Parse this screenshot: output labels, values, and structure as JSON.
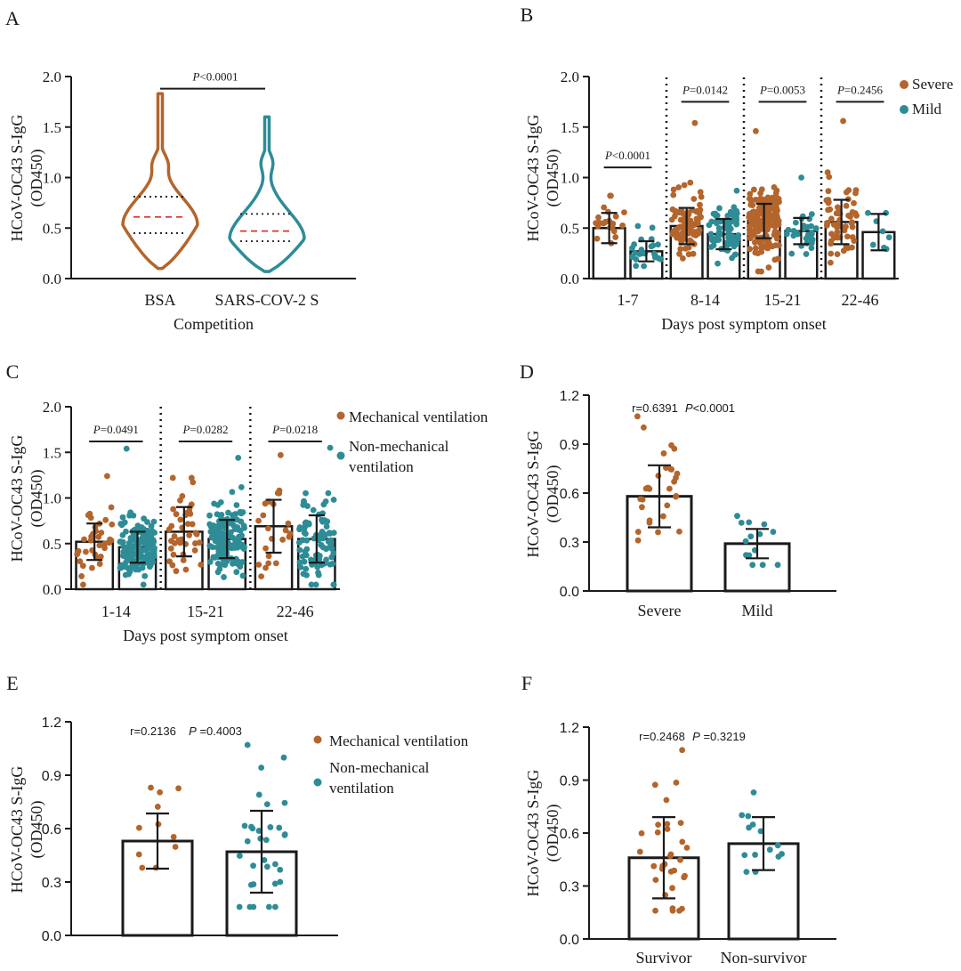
{
  "colors": {
    "severe": "#B3652C",
    "mild": "#2E8C96",
    "median": "#D9352A",
    "axis": "#1a1a1a"
  },
  "chart_data": [
    {
      "panel": "A",
      "type": "violin",
      "ylabel": [
        "HCoV-OC43 S-IgG",
        "(OD450)"
      ],
      "xlabel": "Competition",
      "categories": [
        "BSA",
        "SARS-COV-2 S"
      ],
      "ylim": [
        0,
        2.0
      ],
      "yticks": [
        "0.0",
        "0.5",
        "1.0",
        "1.5",
        "2.0"
      ],
      "violins": [
        {
          "name": "BSA",
          "color": "severe",
          "min": 0.1,
          "max": 1.83,
          "q1": 0.45,
          "median": 0.61,
          "q3": 0.81
        },
        {
          "name": "SARS-COV-2 S",
          "color": "mild",
          "min": 0.07,
          "max": 1.6,
          "q1": 0.37,
          "median": 0.47,
          "q3": 0.64
        }
      ],
      "significance": [
        {
          "from": 0,
          "to": 1,
          "y": 1.88,
          "label": "<0.0001"
        }
      ]
    },
    {
      "panel": "B",
      "type": "bar",
      "ylabel": [
        "HCoV-OC43 S-IgG",
        "(OD450)"
      ],
      "xlabel": "Days post symptom onset",
      "categories": [
        "1-7",
        "8-14",
        "15-21",
        "22-46"
      ],
      "ylim": [
        0,
        2.0
      ],
      "yticks": [
        "0.0",
        "0.5",
        "1.0",
        "1.5",
        "2.0"
      ],
      "legend": [
        "Severe",
        "Mild"
      ],
      "legend_placement": "top-right",
      "series": [
        {
          "name": "Severe",
          "color": "severe",
          "values": [
            0.5,
            0.52,
            0.57,
            0.56
          ],
          "sd": [
            0.15,
            0.18,
            0.17,
            0.22
          ],
          "n": [
            22,
            90,
            160,
            60
          ],
          "max": [
            0.82,
            1.54,
            1.46,
            1.56
          ]
        },
        {
          "name": "Mild",
          "color": "mild",
          "values": [
            0.27,
            0.44,
            0.47,
            0.46
          ],
          "sd": [
            0.1,
            0.15,
            0.13,
            0.18
          ],
          "n": [
            22,
            70,
            28,
            7
          ],
          "max": [
            0.52,
            0.87,
            1.0,
            0.65
          ]
        }
      ],
      "significance": [
        {
          "group": 0,
          "y": 1.1,
          "label": "<0.0001"
        },
        {
          "group": 1,
          "y": 1.75,
          "label": "=0.0142"
        },
        {
          "group": 2,
          "y": 1.75,
          "label": "=0.0053"
        },
        {
          "group": 3,
          "y": 1.75,
          "label": "=0.2456"
        }
      ]
    },
    {
      "panel": "C",
      "type": "bar",
      "ylabel": [
        "HCoV-OC43 S-IgG",
        "(OD450)"
      ],
      "xlabel": "Days post symptom onset",
      "categories": [
        "1-14",
        "15-21",
        "22-46"
      ],
      "ylim": [
        0,
        2.0
      ],
      "yticks": [
        "0.0",
        "0.5",
        "1.0",
        "1.5",
        "2.0"
      ],
      "legend": [
        "Mechanical ventilation",
        "Non-mechanical ventilation"
      ],
      "legend_placement": "right",
      "series": [
        {
          "name": "Mechanical ventilation",
          "color": "severe",
          "values": [
            0.52,
            0.63,
            0.69
          ],
          "sd": [
            0.2,
            0.27,
            0.29
          ],
          "n": [
            35,
            40,
            22
          ],
          "max": [
            1.24,
            1.22,
            1.47
          ]
        },
        {
          "name": "Non-mechanical ventilation",
          "color": "mild",
          "values": [
            0.46,
            0.55,
            0.55
          ],
          "sd": [
            0.17,
            0.21,
            0.26
          ],
          "n": [
            140,
            140,
            90
          ],
          "max": [
            1.54,
            1.44,
            1.55
          ]
        }
      ],
      "significance": [
        {
          "group": 0,
          "y": 1.62,
          "label": "=0.0491"
        },
        {
          "group": 1,
          "y": 1.62,
          "label": "=0.0282"
        },
        {
          "group": 2,
          "y": 1.62,
          "label": "=0.0218"
        }
      ]
    },
    {
      "panel": "D",
      "type": "bar",
      "ylabel": [
        "HCoV-OC43 S-IgG",
        "(OD450)"
      ],
      "categories": [
        "Severe",
        "Mild"
      ],
      "ylim": [
        0,
        1.2
      ],
      "yticks": [
        "0.0",
        "0.3",
        "0.6",
        "0.9",
        "1.2"
      ],
      "bars": [
        {
          "name": "Severe",
          "color": "severe",
          "value": 0.58,
          "sd": 0.19,
          "n": 28,
          "min": 0.31,
          "max": 1.07
        },
        {
          "name": "Mild",
          "color": "mild",
          "value": 0.29,
          "sd": 0.09,
          "n": 12,
          "min": 0.16,
          "max": 0.46
        }
      ],
      "stat_text": {
        "r": "r=0.6391",
        "p_italic": "P",
        "p_value": "<0.0001"
      }
    },
    {
      "panel": "E",
      "type": "bar",
      "ylabel": [
        "HCoV-OC43 S-IgG",
        "(OD450)"
      ],
      "categories": [
        "",
        ""
      ],
      "ylim": [
        0,
        1.2
      ],
      "yticks": [
        "0.0",
        "0.3",
        "0.6",
        "0.9",
        "1.2"
      ],
      "legend": [
        "Mechanical ventilation",
        "Non-mechanical ventilation"
      ],
      "legend_placement": "right",
      "bars": [
        {
          "name": "Mechanical ventilation",
          "color": "severe",
          "value": 0.53,
          "sd": 0.155,
          "n": 9,
          "min": 0.38,
          "max": 0.83
        },
        {
          "name": "Non-mechanical ventilation",
          "color": "mild",
          "value": 0.47,
          "sd": 0.23,
          "n": 30,
          "min": 0.16,
          "max": 1.07
        }
      ],
      "stat_text": {
        "r": "r=0.2136",
        "p_italic": "P",
        "p_value": " =0.4003"
      }
    },
    {
      "panel": "F",
      "type": "bar",
      "ylabel": [
        "HCoV-OC43 S-IgG",
        "(OD450)"
      ],
      "categories": [
        "Survivor",
        "Non-survivor"
      ],
      "ylim": [
        0,
        1.2
      ],
      "yticks": [
        "0.0",
        "0.3",
        "0.6",
        "0.9",
        "1.2"
      ],
      "bars": [
        {
          "name": "Survivor",
          "color": "severe",
          "value": 0.46,
          "sd": 0.23,
          "n": 30,
          "min": 0.16,
          "max": 1.07
        },
        {
          "name": "Non-survivor",
          "color": "mild",
          "value": 0.54,
          "sd": 0.15,
          "n": 12,
          "min": 0.38,
          "max": 0.83
        }
      ],
      "stat_text": {
        "r": "r=0.2468",
        "p_italic": "P",
        "p_value": " =0.3219"
      }
    }
  ]
}
